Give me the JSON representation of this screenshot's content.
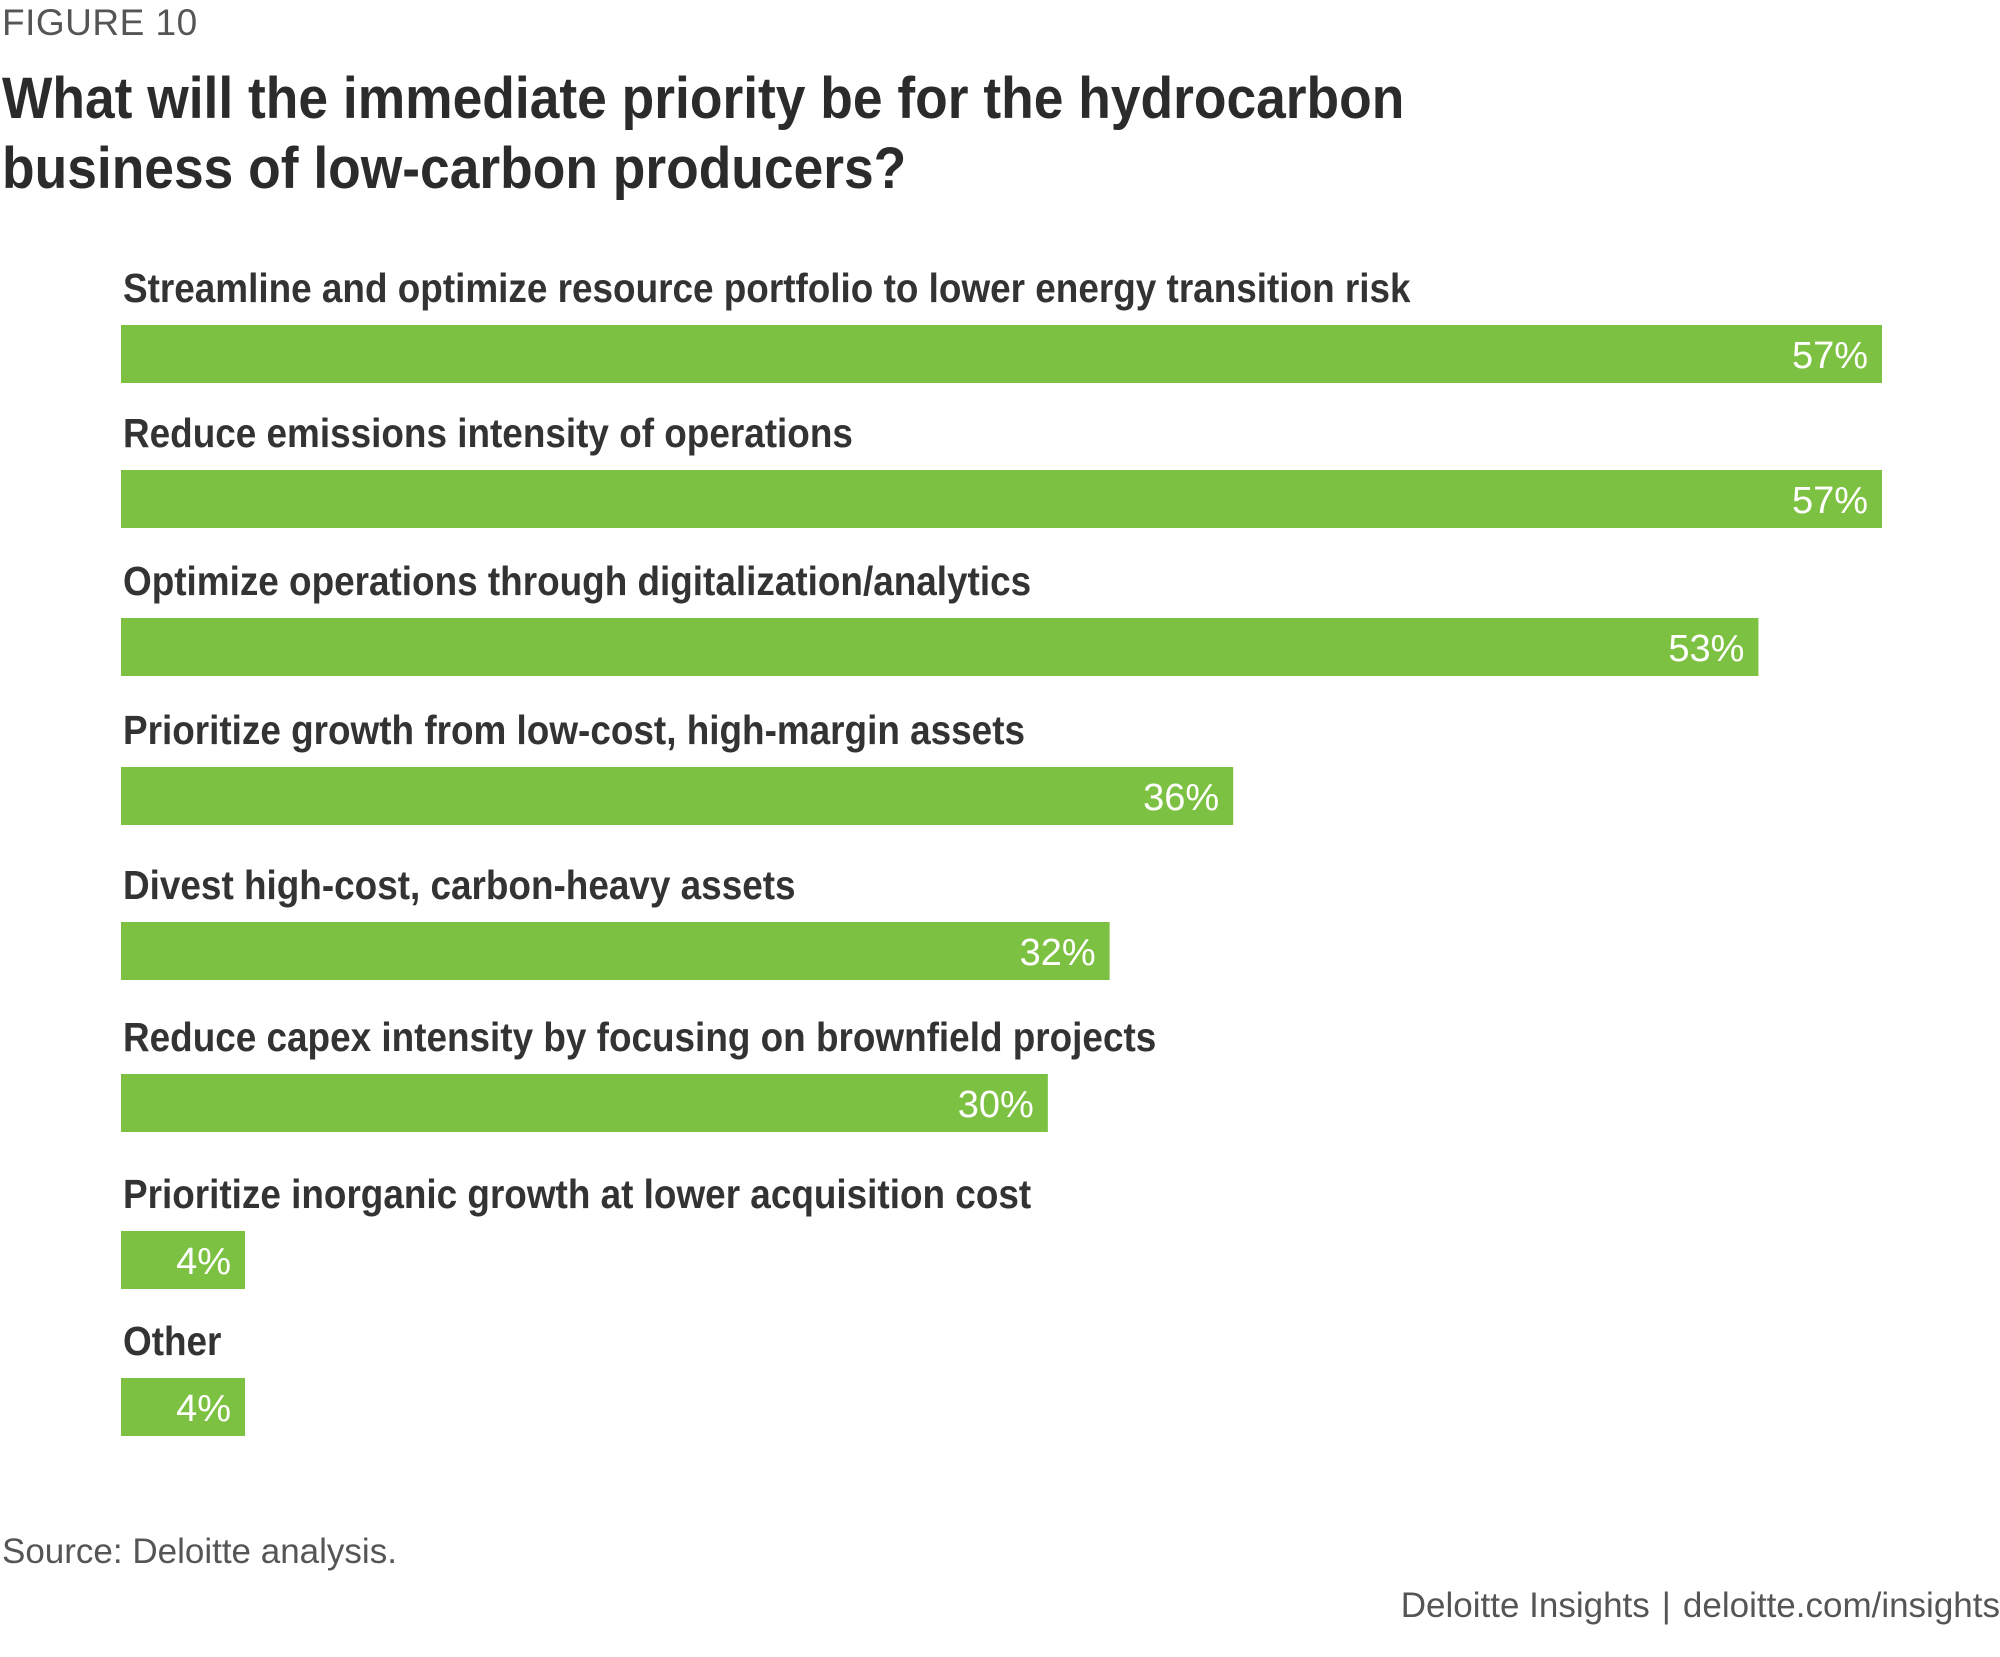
{
  "figure_label": "FIGURE 10",
  "source": "Source: Deloitte analysis.",
  "footer": {
    "brand": "Deloitte Insights",
    "separator": "|",
    "url": "deloitte.com/insights"
  },
  "colors": {
    "bar": "#7dc142",
    "bar_label": "#ffffff",
    "category_label": "#333333"
  },
  "chart_data": {
    "type": "bar",
    "orientation": "horizontal",
    "title": "What will the immediate priority be for the hydrocarbon business of low-carbon producers?",
    "xlabel": "",
    "ylabel": "",
    "xlim": [
      0,
      57
    ],
    "grid": false,
    "categories": [
      "Streamline and optimize resource portfolio to lower energy transition risk",
      "Reduce emissions intensity of operations",
      "Optimize operations through digitalization/analytics",
      "Prioritize growth from low-cost, high-margin assets",
      "Divest high-cost, carbon-heavy assets",
      "Reduce capex intensity by focusing on brownfield projects",
      "Prioritize inorganic growth at lower acquisition cost",
      "Other"
    ],
    "values": [
      57,
      57,
      53,
      36,
      32,
      30,
      4,
      4
    ],
    "value_labels": [
      "57%",
      "57%",
      "53%",
      "36%",
      "32%",
      "30%",
      "4%",
      "4%"
    ]
  }
}
